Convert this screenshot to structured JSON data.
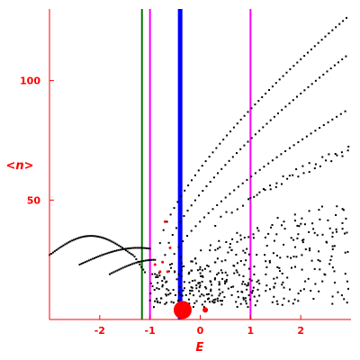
{
  "chart_data": {
    "type": "scatter",
    "xlabel": "E",
    "ylabel": "<n>",
    "xlim": [
      -3.0,
      3.0
    ],
    "ylim": [
      0,
      130
    ],
    "x_ticks": [
      -2,
      -1,
      0,
      1,
      2
    ],
    "y_ticks": [
      50,
      100
    ],
    "x_tick_labels": [
      "-2",
      "-1",
      "0",
      "1",
      "2"
    ],
    "y_tick_labels": [
      "50",
      "100"
    ],
    "grid": false,
    "colors": {
      "axes": "#ff0000",
      "points": "#000000",
      "highlight": "#ff0000",
      "line_green": "#007700",
      "line_magenta": "#ff00ff",
      "line_blue": "#0000ff"
    },
    "vertical_lines": [
      {
        "x": -1.16,
        "color": "#007700"
      },
      {
        "x": -1.0,
        "color": "#ff00ff"
      },
      {
        "x": -0.4,
        "color": "#0000ff"
      },
      {
        "x": 1.0,
        "color": "#ff00ff"
      }
    ],
    "bands": [
      {
        "x": [
          -3.0,
          -1.1
        ],
        "y": [
          27,
          35
        ]
      },
      {
        "x": [
          -2.4,
          -1.0
        ],
        "y": [
          23,
          30
        ]
      },
      {
        "x": [
          -1.8,
          -0.9
        ],
        "y": [
          19,
          25
        ]
      },
      {
        "x": [
          -0.8,
          2.95
        ],
        "y": [
          32,
          127
        ]
      },
      {
        "x": [
          -0.7,
          2.95
        ],
        "y": [
          27,
          110
        ]
      },
      {
        "x": [
          -0.6,
          2.95
        ],
        "y": [
          23,
          87
        ]
      }
    ],
    "highlight_points": [
      {
        "x": -0.35,
        "y": 4,
        "size": 10
      },
      {
        "x": 0.1,
        "y": 4,
        "size": 3
      },
      {
        "x": -0.8,
        "y": 20,
        "size": 1.5
      },
      {
        "x": -0.75,
        "y": 24,
        "size": 1.5
      },
      {
        "x": -0.65,
        "y": 20,
        "size": 1.5
      },
      {
        "x": -0.6,
        "y": 30,
        "size": 1.5
      },
      {
        "x": -0.7,
        "y": 41,
        "size": 1.5
      },
      {
        "x": -0.9,
        "y": 23,
        "size": 1.5
      }
    ]
  }
}
